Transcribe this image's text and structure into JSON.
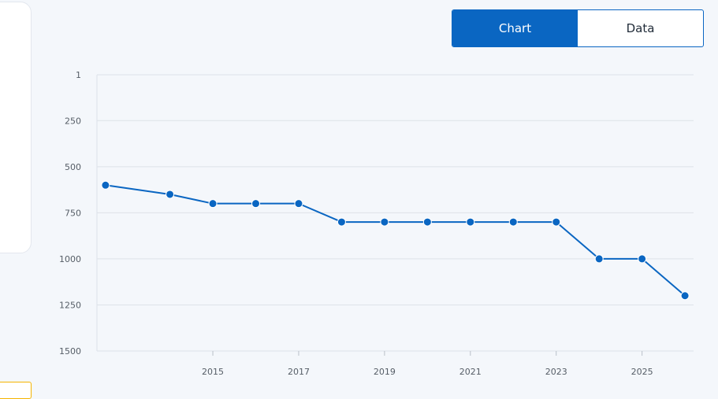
{
  "toggle": {
    "chart_label": "Chart",
    "data_label": "Data",
    "active": "chart"
  },
  "colors": {
    "accent": "#0a66c2",
    "grid": "#dde2e8",
    "background": "#f4f7fb"
  },
  "chart_data": {
    "type": "line",
    "title": "",
    "xlabel": "",
    "ylabel": "",
    "y_reversed": true,
    "ylim": [
      1,
      1500
    ],
    "y_ticks": [
      "1",
      "250",
      "500",
      "750",
      "1000",
      "1250",
      "1500"
    ],
    "xlim": [
      2012.3,
      2026.2
    ],
    "x_ticks": [
      "2015",
      "2017",
      "2019",
      "2021",
      "2023",
      "2025"
    ],
    "grid": true,
    "legend": "none",
    "series": [
      {
        "x": [
          2012.5,
          2014,
          2015,
          2016,
          2017,
          2018,
          2019,
          2020,
          2021,
          2022,
          2023,
          2024,
          2025,
          2026
        ],
        "values": [
          600,
          650,
          700,
          700,
          700,
          800,
          800,
          800,
          800,
          800,
          800,
          1000,
          1000,
          1200
        ]
      }
    ]
  }
}
